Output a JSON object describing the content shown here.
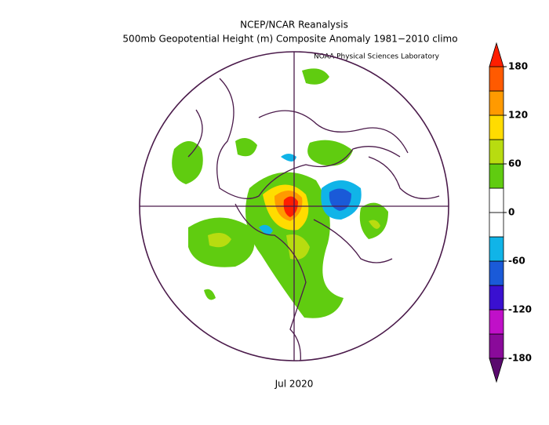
{
  "title": "NCEP/NCAR Reanalysis",
  "subtitle": "500mb Geopotential Height (m) Composite Anomaly 1981−2010 climo",
  "credit": "NOAA Physical Sciences Laboratory",
  "date_label": "Jul 2020",
  "colorbar": {
    "lim": [
      -180,
      180
    ],
    "ticks": [
      180,
      120,
      60,
      0,
      -60,
      -120,
      -180
    ],
    "colors": [
      "#5a0a6e",
      "#8a0a9a",
      "#c010c8",
      "#3a10d0",
      "#1a5ad8",
      "#10b4e8",
      "#ffffff",
      "#ffffff",
      "#60cc10",
      "#b8dc10",
      "#ffdc00",
      "#ff9a00",
      "#ff5a00",
      "#ff1e00"
    ]
  }
}
